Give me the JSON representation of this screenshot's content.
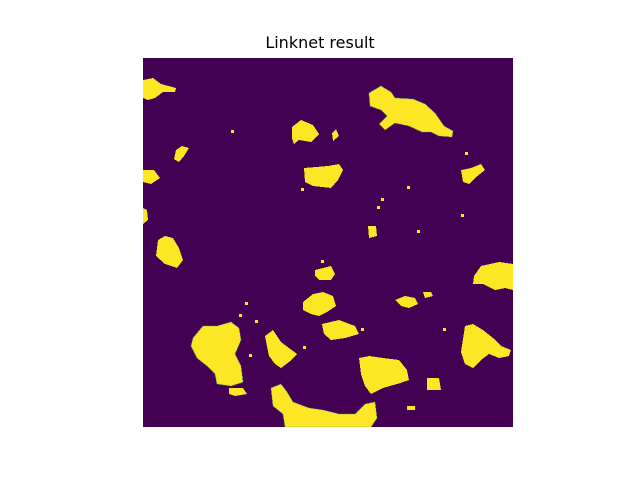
{
  "title": "Linknet result",
  "colors": {
    "background": "#440154",
    "foreground": "#fde725",
    "edge": "#38b879"
  }
}
